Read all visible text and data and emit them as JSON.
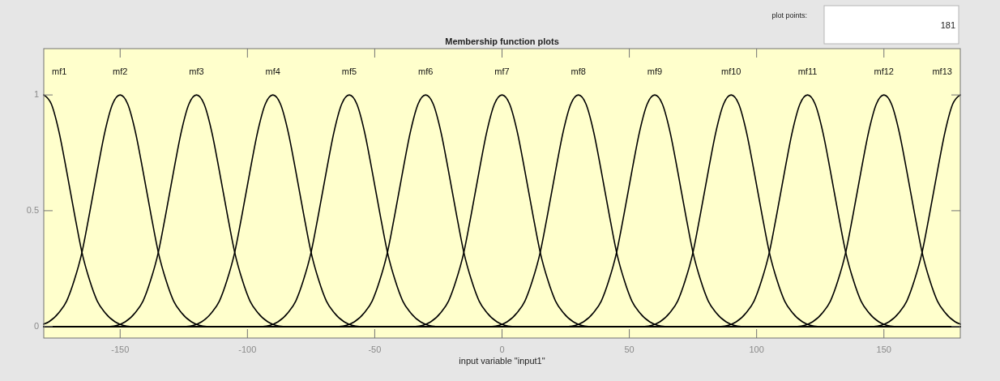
{
  "chart_data": {
    "type": "line",
    "title": "Membership function plots",
    "xlabel": "input variable \"input1\"",
    "annotations": [
      "plot points:",
      "181"
    ],
    "xlim": [
      -180,
      180
    ],
    "ylim": [
      -0.05,
      1.2
    ],
    "xticks": [
      -150,
      -100,
      -50,
      0,
      50,
      100,
      150
    ],
    "yticks": [
      0,
      0.5,
      1
    ],
    "series": [
      {
        "name": "mf1",
        "color": "#000000",
        "x": [
          -180,
          -177,
          -174,
          -171,
          -168,
          -165,
          -162,
          -159,
          -156,
          -152,
          -146,
          180
        ],
        "values": [
          1,
          0.96,
          0.84,
          0.67,
          0.49,
          0.32,
          0.2,
          0.11,
          0.06,
          0.02,
          0,
          0
        ]
      },
      {
        "name": "mf2",
        "color": "#000000",
        "x": [
          -180,
          -178,
          -174,
          -171,
          -168,
          -165,
          -162,
          -159,
          -156,
          -153,
          -150,
          -147,
          -144,
          -141,
          -138,
          -135,
          -132,
          -129,
          -126,
          -122,
          -116,
          180
        ],
        "values": [
          0.01,
          0.02,
          0.06,
          0.11,
          0.2,
          0.32,
          0.49,
          0.67,
          0.84,
          0.96,
          1,
          0.96,
          0.84,
          0.67,
          0.49,
          0.32,
          0.2,
          0.11,
          0.06,
          0.02,
          0,
          0
        ]
      },
      {
        "name": "mf3",
        "color": "#000000",
        "x": [
          -180,
          -154,
          -148,
          -144,
          -141,
          -138,
          -135,
          -132,
          -129,
          -126,
          -123,
          -120,
          -117,
          -114,
          -111,
          -108,
          -105,
          -102,
          -99,
          -96,
          -92,
          -86,
          180
        ],
        "values": [
          0,
          0,
          0.02,
          0.06,
          0.11,
          0.2,
          0.32,
          0.49,
          0.67,
          0.84,
          0.96,
          1,
          0.96,
          0.84,
          0.67,
          0.49,
          0.32,
          0.2,
          0.11,
          0.06,
          0.02,
          0,
          0
        ]
      },
      {
        "name": "mf4",
        "color": "#000000",
        "x": [
          -180,
          -124,
          -118,
          -114,
          -111,
          -108,
          -105,
          -102,
          -99,
          -96,
          -93,
          -90,
          -87,
          -84,
          -81,
          -78,
          -75,
          -72,
          -69,
          -66,
          -62,
          -56,
          180
        ],
        "values": [
          0,
          0,
          0.02,
          0.06,
          0.11,
          0.2,
          0.32,
          0.49,
          0.67,
          0.84,
          0.96,
          1,
          0.96,
          0.84,
          0.67,
          0.49,
          0.32,
          0.2,
          0.11,
          0.06,
          0.02,
          0,
          0
        ]
      },
      {
        "name": "mf5",
        "color": "#000000",
        "x": [
          -180,
          -94,
          -88,
          -84,
          -81,
          -78,
          -75,
          -72,
          -69,
          -66,
          -63,
          -60,
          -57,
          -54,
          -51,
          -48,
          -45,
          -42,
          -39,
          -36,
          -32,
          -26,
          180
        ],
        "values": [
          0,
          0,
          0.02,
          0.06,
          0.11,
          0.2,
          0.32,
          0.49,
          0.67,
          0.84,
          0.96,
          1,
          0.96,
          0.84,
          0.67,
          0.49,
          0.32,
          0.2,
          0.11,
          0.06,
          0.02,
          0,
          0
        ]
      },
      {
        "name": "mf6",
        "color": "#000000",
        "x": [
          -180,
          -64,
          -58,
          -54,
          -51,
          -48,
          -45,
          -42,
          -39,
          -36,
          -33,
          -30,
          -27,
          -24,
          -21,
          -18,
          -15,
          -12,
          -9,
          -6,
          -2,
          4,
          180
        ],
        "values": [
          0,
          0,
          0.02,
          0.06,
          0.11,
          0.2,
          0.32,
          0.49,
          0.67,
          0.84,
          0.96,
          1,
          0.96,
          0.84,
          0.67,
          0.49,
          0.32,
          0.2,
          0.11,
          0.06,
          0.02,
          0,
          0
        ]
      },
      {
        "name": "mf7",
        "color": "#000000",
        "x": [
          -180,
          -34,
          -28,
          -24,
          -21,
          -18,
          -15,
          -12,
          -9,
          -6,
          -3,
          0,
          3,
          6,
          9,
          12,
          15,
          18,
          21,
          24,
          28,
          34,
          180
        ],
        "values": [
          0,
          0,
          0.02,
          0.06,
          0.11,
          0.2,
          0.32,
          0.49,
          0.67,
          0.84,
          0.96,
          1,
          0.96,
          0.84,
          0.67,
          0.49,
          0.32,
          0.2,
          0.11,
          0.06,
          0.02,
          0,
          0
        ]
      },
      {
        "name": "mf8",
        "color": "#000000",
        "x": [
          -180,
          -4,
          2,
          6,
          9,
          12,
          15,
          18,
          21,
          24,
          27,
          30,
          33,
          36,
          39,
          42,
          45,
          48,
          51,
          54,
          58,
          64,
          180
        ],
        "values": [
          0,
          0,
          0.02,
          0.06,
          0.11,
          0.2,
          0.32,
          0.49,
          0.67,
          0.84,
          0.96,
          1,
          0.96,
          0.84,
          0.67,
          0.49,
          0.32,
          0.2,
          0.11,
          0.06,
          0.02,
          0,
          0
        ]
      },
      {
        "name": "mf9",
        "color": "#000000",
        "x": [
          -180,
          26,
          32,
          36,
          39,
          42,
          45,
          48,
          51,
          54,
          57,
          60,
          63,
          66,
          69,
          72,
          75,
          78,
          81,
          84,
          88,
          94,
          180
        ],
        "values": [
          0,
          0,
          0.02,
          0.06,
          0.11,
          0.2,
          0.32,
          0.49,
          0.67,
          0.84,
          0.96,
          1,
          0.96,
          0.84,
          0.67,
          0.49,
          0.32,
          0.2,
          0.11,
          0.06,
          0.02,
          0,
          0
        ]
      },
      {
        "name": "mf10",
        "color": "#000000",
        "x": [
          -180,
          56,
          62,
          66,
          69,
          72,
          75,
          78,
          81,
          84,
          87,
          90,
          93,
          96,
          99,
          102,
          105,
          108,
          111,
          114,
          118,
          124,
          180
        ],
        "values": [
          0,
          0,
          0.02,
          0.06,
          0.11,
          0.2,
          0.32,
          0.49,
          0.67,
          0.84,
          0.96,
          1,
          0.96,
          0.84,
          0.67,
          0.49,
          0.32,
          0.2,
          0.11,
          0.06,
          0.02,
          0,
          0
        ]
      },
      {
        "name": "mf11",
        "color": "#000000",
        "x": [
          -180,
          86,
          92,
          96,
          99,
          102,
          105,
          108,
          111,
          114,
          117,
          120,
          123,
          126,
          129,
          132,
          135,
          138,
          141,
          144,
          148,
          154,
          180
        ],
        "values": [
          0,
          0,
          0.02,
          0.06,
          0.11,
          0.2,
          0.32,
          0.49,
          0.67,
          0.84,
          0.96,
          1,
          0.96,
          0.84,
          0.67,
          0.49,
          0.32,
          0.2,
          0.11,
          0.06,
          0.02,
          0,
          0
        ]
      },
      {
        "name": "mf12",
        "color": "#000000",
        "x": [
          -180,
          116,
          122,
          126,
          129,
          132,
          135,
          138,
          141,
          144,
          147,
          150,
          153,
          156,
          159,
          162,
          165,
          168,
          171,
          174,
          178,
          180
        ],
        "values": [
          0,
          0,
          0.02,
          0.06,
          0.11,
          0.2,
          0.32,
          0.49,
          0.67,
          0.84,
          0.96,
          1,
          0.96,
          0.84,
          0.67,
          0.49,
          0.32,
          0.2,
          0.11,
          0.06,
          0.02,
          0.01
        ]
      },
      {
        "name": "mf13",
        "color": "#000000",
        "x": [
          -180,
          146,
          152,
          156,
          159,
          162,
          165,
          168,
          171,
          174,
          177,
          180
        ],
        "values": [
          0,
          0,
          0.02,
          0.06,
          0.11,
          0.2,
          0.32,
          0.49,
          0.67,
          0.84,
          0.96,
          1
        ]
      }
    ]
  }
}
